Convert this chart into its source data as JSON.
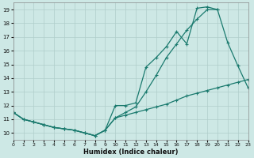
{
  "xlabel": "Humidex (Indice chaleur)",
  "bg_color": "#cde8e5",
  "grid_color": "#b0ceca",
  "line_color": "#1a7a6e",
  "line1_x": [
    0,
    1,
    2,
    3,
    4,
    5,
    6,
    7,
    8,
    9,
    10,
    11,
    12,
    13,
    14,
    15,
    16,
    17,
    18,
    19,
    20
  ],
  "line1_y": [
    11.5,
    11.0,
    10.8,
    10.6,
    10.4,
    10.3,
    10.2,
    10.0,
    9.8,
    10.2,
    12.0,
    12.0,
    12.2,
    14.8,
    15.5,
    16.3,
    17.4,
    16.5,
    19.1,
    19.2,
    19.0
  ],
  "line2_x": [
    0,
    1,
    2,
    3,
    4,
    5,
    6,
    7,
    8,
    9,
    10,
    11,
    12,
    13,
    14,
    15,
    16,
    17,
    18,
    19,
    20,
    21,
    22,
    23
  ],
  "line2_y": [
    11.5,
    11.0,
    10.8,
    10.6,
    10.4,
    10.3,
    10.2,
    10.0,
    9.8,
    10.2,
    11.1,
    11.5,
    11.9,
    13.0,
    14.2,
    15.5,
    16.5,
    17.5,
    18.3,
    19.0,
    19.0,
    16.6,
    14.9,
    13.3
  ],
  "line3_x": [
    0,
    1,
    2,
    3,
    4,
    5,
    6,
    7,
    8,
    9,
    10,
    11,
    12,
    13,
    14,
    15,
    16,
    17,
    18,
    19,
    20,
    21,
    22,
    23
  ],
  "line3_y": [
    11.5,
    11.0,
    10.8,
    10.6,
    10.4,
    10.3,
    10.2,
    10.0,
    9.8,
    10.2,
    11.1,
    11.3,
    11.5,
    11.7,
    11.9,
    12.1,
    12.4,
    12.7,
    12.9,
    13.1,
    13.3,
    13.5,
    13.7,
    13.9
  ],
  "xlim": [
    0,
    23
  ],
  "ylim": [
    9.5,
    19.5
  ],
  "yticks": [
    10,
    11,
    12,
    13,
    14,
    15,
    16,
    17,
    18,
    19
  ],
  "xticks": [
    0,
    1,
    2,
    3,
    4,
    5,
    6,
    7,
    8,
    9,
    10,
    11,
    12,
    13,
    14,
    15,
    16,
    17,
    18,
    19,
    20,
    21,
    22,
    23
  ]
}
